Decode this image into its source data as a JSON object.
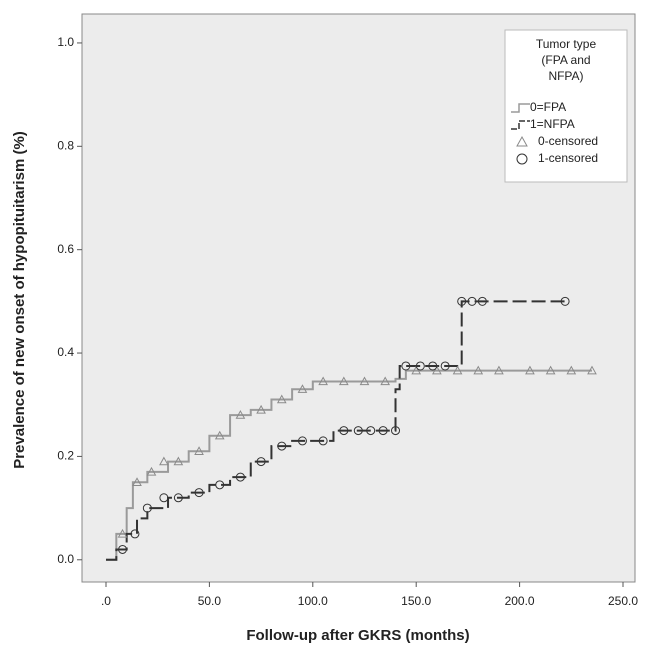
{
  "chart_data": {
    "type": "step",
    "x_label": "Follow-up after GKRS (months)",
    "y_label": "Prevalence of new onset of hypopituitarism (%)",
    "legend_title": [
      "Tumor type",
      "(FPA and",
      "NFPA)"
    ],
    "legend_position": "upper right",
    "xlim": [
      -11.6,
      255.8
    ],
    "ylim": [
      -0.043,
      1.056
    ],
    "xticks": [
      {
        "value": 0,
        "label": ".0"
      },
      {
        "value": 50,
        "label": "50.0"
      },
      {
        "value": 100,
        "label": "100.0"
      },
      {
        "value": 150,
        "label": "150.0"
      },
      {
        "value": 200,
        "label": "200.0"
      },
      {
        "value": 250,
        "label": "250.0"
      }
    ],
    "yticks": [
      {
        "value": 0,
        "label": "0.0"
      },
      {
        "value": 0.2,
        "label": "0.2"
      },
      {
        "value": 0.4,
        "label": "0.4"
      },
      {
        "value": 0.6,
        "label": "0.6"
      },
      {
        "value": 0.8,
        "label": "0.8"
      },
      {
        "value": 1.0,
        "label": "1.0"
      }
    ],
    "series": [
      {
        "name": "0=FPA",
        "style": "line",
        "color": "#9a9a9a",
        "dash": "none",
        "x": [
          0,
          5,
          10,
          13,
          20,
          30,
          40,
          50,
          60,
          70,
          80,
          90,
          100,
          140,
          145,
          235
        ],
        "values": [
          0,
          0.05,
          0.1,
          0.15,
          0.17,
          0.19,
          0.21,
          0.24,
          0.28,
          0.29,
          0.31,
          0.33,
          0.345,
          0.35,
          0.366,
          0.366
        ]
      },
      {
        "name": "1=NFPA",
        "style": "line",
        "color": "#333333",
        "dash": "14 5",
        "x": [
          0,
          5,
          10,
          15,
          20,
          30,
          40,
          50,
          60,
          70,
          80,
          90,
          110,
          140,
          142,
          172,
          222
        ],
        "values": [
          0,
          0.02,
          0.05,
          0.08,
          0.1,
          0.12,
          0.13,
          0.145,
          0.16,
          0.19,
          0.22,
          0.23,
          0.25,
          0.33,
          0.375,
          0.5,
          0.5
        ]
      },
      {
        "name": "0-censored",
        "style": "marker",
        "marker": "triangle",
        "color": "#8a8a8a",
        "x": [
          8,
          15,
          22,
          28,
          35,
          45,
          55,
          65,
          75,
          85,
          95,
          105,
          115,
          125,
          135,
          150,
          160,
          170,
          180,
          190,
          205,
          215,
          225,
          235
        ],
        "values": [
          0.05,
          0.15,
          0.17,
          0.19,
          0.19,
          0.21,
          0.24,
          0.28,
          0.29,
          0.31,
          0.33,
          0.345,
          0.345,
          0.345,
          0.345,
          0.366,
          0.366,
          0.366,
          0.366,
          0.366,
          0.366,
          0.366,
          0.366,
          0.366
        ]
      },
      {
        "name": "1-censored",
        "style": "marker",
        "marker": "circle",
        "color": "#333333",
        "x": [
          8,
          14,
          20,
          28,
          35,
          45,
          55,
          65,
          75,
          85,
          95,
          105,
          115,
          122,
          128,
          134,
          140,
          145,
          152,
          158,
          164,
          172,
          177,
          182,
          222
        ],
        "values": [
          0.02,
          0.05,
          0.1,
          0.12,
          0.12,
          0.13,
          0.145,
          0.16,
          0.19,
          0.22,
          0.23,
          0.23,
          0.25,
          0.25,
          0.25,
          0.25,
          0.25,
          0.375,
          0.375,
          0.375,
          0.375,
          0.5,
          0.5,
          0.5,
          0.5
        ]
      }
    ]
  }
}
